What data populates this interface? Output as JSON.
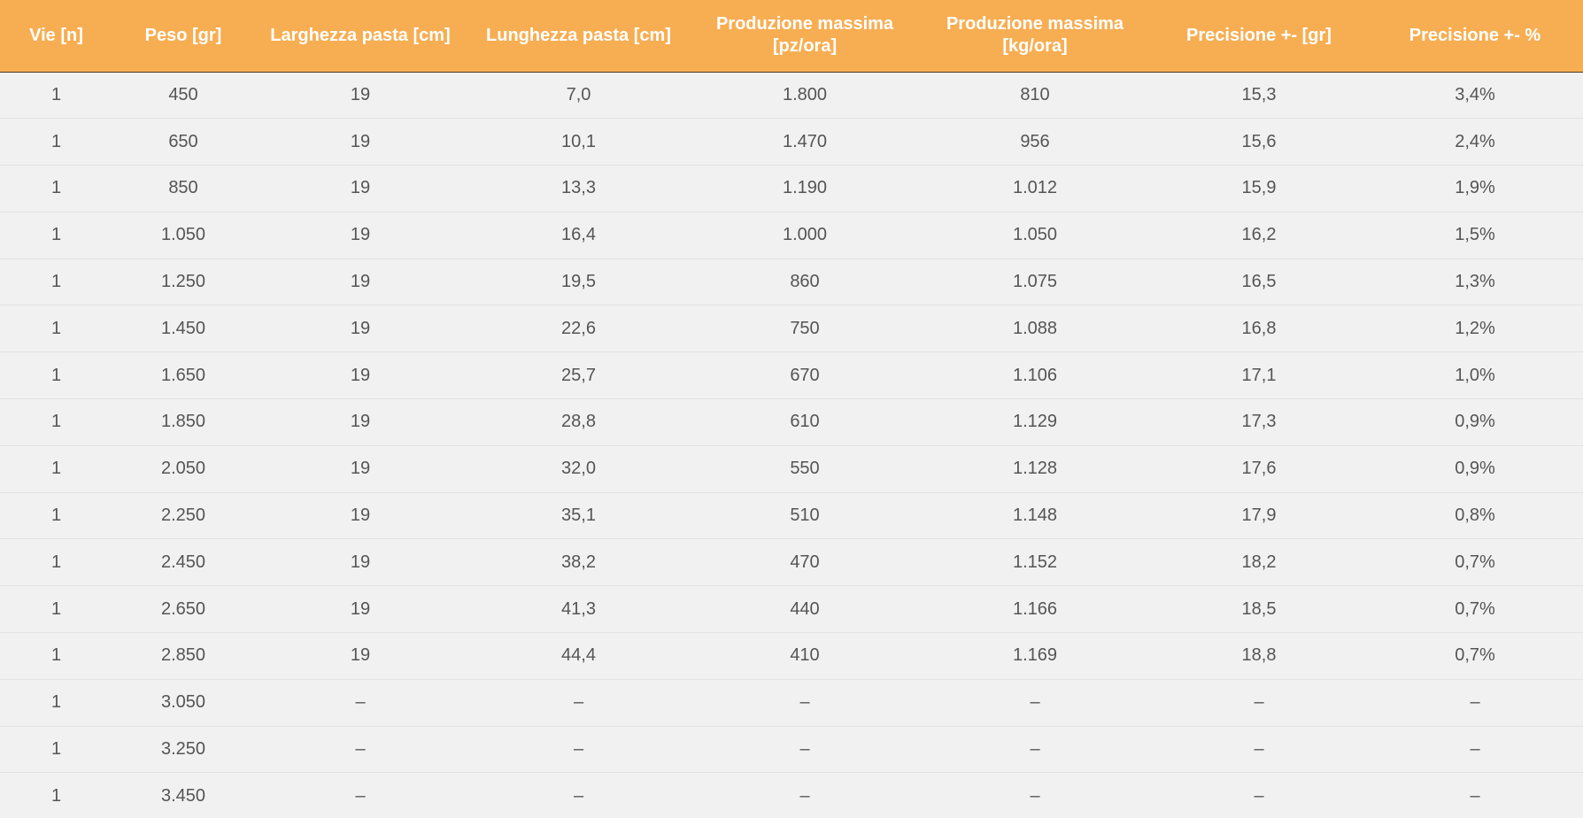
{
  "table": {
    "columns": [
      "Vie [n]",
      "Peso [gr]",
      "Larghezza pasta [cm]",
      "Lunghezza pasta [cm]",
      "Produzione massima [pz/ora]",
      "Produzione massima [kg/ora]",
      "Precisione +- [gr]",
      "Precisione +- %"
    ],
    "rows": [
      [
        "1",
        "450",
        "19",
        "7,0",
        "1.800",
        "810",
        "15,3",
        "3,4%"
      ],
      [
        "1",
        "650",
        "19",
        "10,1",
        "1.470",
        "956",
        "15,6",
        "2,4%"
      ],
      [
        "1",
        "850",
        "19",
        "13,3",
        "1.190",
        "1.012",
        "15,9",
        "1,9%"
      ],
      [
        "1",
        "1.050",
        "19",
        "16,4",
        "1.000",
        "1.050",
        "16,2",
        "1,5%"
      ],
      [
        "1",
        "1.250",
        "19",
        "19,5",
        "860",
        "1.075",
        "16,5",
        "1,3%"
      ],
      [
        "1",
        "1.450",
        "19",
        "22,6",
        "750",
        "1.088",
        "16,8",
        "1,2%"
      ],
      [
        "1",
        "1.650",
        "19",
        "25,7",
        "670",
        "1.106",
        "17,1",
        "1,0%"
      ],
      [
        "1",
        "1.850",
        "19",
        "28,8",
        "610",
        "1.129",
        "17,3",
        "0,9%"
      ],
      [
        "1",
        "2.050",
        "19",
        "32,0",
        "550",
        "1.128",
        "17,6",
        "0,9%"
      ],
      [
        "1",
        "2.250",
        "19",
        "35,1",
        "510",
        "1.148",
        "17,9",
        "0,8%"
      ],
      [
        "1",
        "2.450",
        "19",
        "38,2",
        "470",
        "1.152",
        "18,2",
        "0,7%"
      ],
      [
        "1",
        "2.650",
        "19",
        "41,3",
        "440",
        "1.166",
        "18,5",
        "0,7%"
      ],
      [
        "1",
        "2.850",
        "19",
        "44,4",
        "410",
        "1.169",
        "18,8",
        "0,7%"
      ],
      [
        "1",
        "3.050",
        "–",
        "–",
        "–",
        "–",
        "–",
        "–"
      ],
      [
        "1",
        "3.250",
        "–",
        "–",
        "–",
        "–",
        "–",
        "–"
      ],
      [
        "1",
        "3.450",
        "–",
        "–",
        "–",
        "–",
        "–",
        "–"
      ]
    ]
  },
  "colors": {
    "header_background": "#f7ae53",
    "header_text": "#ffffff",
    "row_background": "#f1f1f1",
    "cell_text": "#555555"
  }
}
